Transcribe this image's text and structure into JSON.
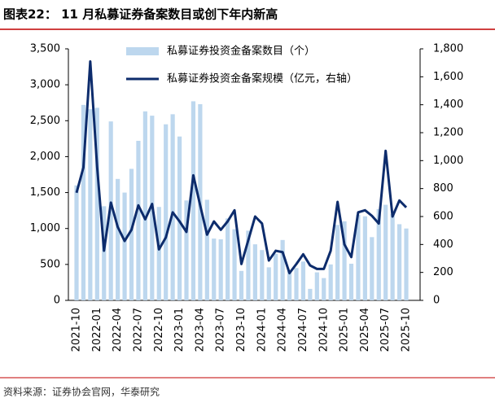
{
  "chart_data": {
    "type": "bar-line",
    "title": "图表22：  11 月私募证券备案数目或创下年内新高",
    "source": "资料来源：证券协会官网，华泰研究",
    "categories": [
      "2021-10",
      null,
      null,
      "2022-01",
      null,
      null,
      "2022-04",
      null,
      null,
      "2022-07",
      null,
      null,
      "2022-10",
      null,
      null,
      "2023-01",
      null,
      null,
      "2023-04",
      null,
      null,
      "2023-07",
      null,
      null,
      "2023-10",
      null,
      null,
      "2024-01",
      null,
      null,
      "2024-04",
      null,
      null,
      "2024-07",
      null,
      null,
      "2024-10",
      null,
      null,
      "2025-01",
      null,
      null,
      "2025-04",
      null,
      null,
      "2025-07",
      null,
      null,
      "2025-10"
    ],
    "series": [
      {
        "name": "私募证券投资金备案数目（个）",
        "color": "#bdd7ee",
        "kind": "bar",
        "axis": "y",
        "values": [
          1600,
          2720,
          2660,
          2680,
          1310,
          2490,
          1690,
          1500,
          1830,
          2220,
          2630,
          2570,
          1300,
          2450,
          2590,
          2280,
          1390,
          2770,
          2730,
          1400,
          860,
          850,
          1140,
          990,
          410,
          970,
          780,
          700,
          460,
          650,
          840,
          410,
          450,
          540,
          160,
          390,
          310,
          500,
          1050,
          1100,
          510,
          1190,
          1170,
          880,
          1270,
          1330,
          1200,
          1060,
          1000
        ]
      },
      {
        "name": "私募证券投资金备案规模（亿元，右轴）",
        "color": "#0d2c6c",
        "kind": "line",
        "axis": "y2",
        "values": [
          770,
          950,
          1710,
          955,
          355,
          700,
          525,
          425,
          505,
          680,
          580,
          690,
          365,
          450,
          630,
          565,
          490,
          895,
          680,
          470,
          565,
          505,
          565,
          645,
          260,
          430,
          600,
          550,
          285,
          355,
          345,
          195,
          260,
          330,
          250,
          225,
          225,
          355,
          705,
          400,
          310,
          630,
          645,
          605,
          550,
          1070,
          600,
          715,
          665
        ]
      }
    ],
    "ylim": [
      0,
      3500
    ],
    "yticks": [
      0,
      500,
      {
        "value": 1000,
        "label": "1,000"
      },
      {
        "value": 1500,
        "label": "1,500"
      },
      {
        "value": 2000,
        "label": "2,000"
      },
      {
        "value": 2500,
        "label": "2,500"
      },
      {
        "value": 3000,
        "label": "3,000"
      },
      {
        "value": 3500,
        "label": "3,500"
      }
    ],
    "y2lim": [
      0,
      1800
    ],
    "y2ticks": [
      0,
      200,
      400,
      600,
      800,
      {
        "value": 1000,
        "label": "1,000"
      },
      {
        "value": 1200,
        "label": "1,200"
      },
      {
        "value": 1400,
        "label": "1,400"
      },
      {
        "value": 1600,
        "label": "1,600"
      },
      {
        "value": 1800,
        "label": "1,800"
      }
    ]
  }
}
